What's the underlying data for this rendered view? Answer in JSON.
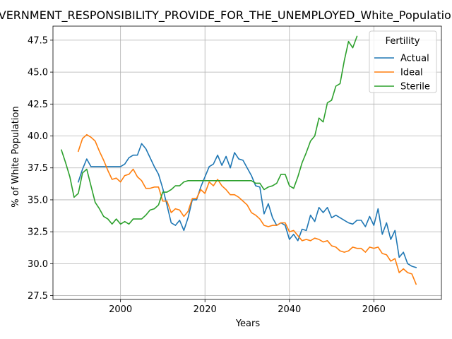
{
  "chart_data": {
    "type": "line",
    "title": "GOVERNMENT_RESPONSIBILITY_PROVIDE_FOR_THE_UNEMPLOYED_White_Population",
    "xlabel": "Years",
    "ylabel": "% of White Population",
    "xlim": [
      1984,
      2076
    ],
    "ylim": [
      27.2,
      48.6
    ],
    "xticks": [
      2000,
      2020,
      2040,
      2060
    ],
    "yticks": [
      27.5,
      30.0,
      32.5,
      35.0,
      37.5,
      40.0,
      42.5,
      45.0,
      47.5
    ],
    "grid": true,
    "legend": {
      "title": "Fertility",
      "position": "top-right"
    },
    "series": [
      {
        "name": "Actual",
        "color": "#1f77b4",
        "x": [
          1990,
          1991,
          1992,
          1993,
          1994,
          1995,
          1996,
          1997,
          1998,
          1999,
          2000,
          2001,
          2002,
          2003,
          2004,
          2005,
          2006,
          2007,
          2008,
          2009,
          2010,
          2011,
          2012,
          2013,
          2014,
          2015,
          2016,
          2017,
          2018,
          2019,
          2020,
          2021,
          2022,
          2023,
          2024,
          2025,
          2026,
          2027,
          2028,
          2029,
          2030,
          2031,
          2032,
          2033,
          2034,
          2035,
          2036,
          2037,
          2038,
          2039,
          2040,
          2041,
          2042,
          2043,
          2044,
          2045,
          2046,
          2047,
          2048,
          2049,
          2050,
          2051,
          2052,
          2053,
          2054,
          2055,
          2056,
          2057,
          2058,
          2059,
          2060,
          2061,
          2062,
          2063,
          2064,
          2065,
          2066,
          2067,
          2068,
          2069,
          2070
        ],
        "values": [
          36.4,
          37.4,
          38.2,
          37.6,
          37.6,
          37.6,
          37.6,
          37.6,
          37.6,
          37.6,
          37.6,
          37.8,
          38.3,
          38.5,
          38.5,
          39.4,
          39.0,
          38.3,
          37.6,
          37.0,
          35.9,
          34.6,
          33.2,
          33.0,
          33.4,
          32.6,
          33.6,
          35.0,
          35.0,
          36.0,
          36.8,
          37.6,
          37.8,
          38.5,
          37.7,
          38.4,
          37.5,
          38.7,
          38.2,
          38.1,
          37.5,
          36.9,
          36.1,
          36.0,
          33.9,
          34.7,
          33.6,
          33.0,
          33.2,
          33.0,
          31.9,
          32.3,
          31.8,
          32.7,
          32.6,
          33.8,
          33.3,
          34.4,
          34.0,
          34.4,
          33.6,
          33.8,
          33.6,
          33.4,
          33.2,
          33.1,
          33.4,
          33.4,
          32.9,
          33.7,
          33.0,
          34.3,
          32.3,
          33.2,
          31.9,
          32.6,
          30.5,
          30.9,
          30.0,
          29.8,
          29.7
        ]
      },
      {
        "name": "Ideal",
        "color": "#ff7f0e",
        "x": [
          1990,
          1991,
          1992,
          1993,
          1994,
          1995,
          1996,
          1997,
          1998,
          1999,
          2000,
          2001,
          2002,
          2003,
          2004,
          2005,
          2006,
          2007,
          2008,
          2009,
          2010,
          2011,
          2012,
          2013,
          2014,
          2015,
          2016,
          2017,
          2018,
          2019,
          2020,
          2021,
          2022,
          2023,
          2024,
          2025,
          2026,
          2027,
          2028,
          2029,
          2030,
          2031,
          2032,
          2033,
          2034,
          2035,
          2036,
          2037,
          2038,
          2039,
          2040,
          2041,
          2042,
          2043,
          2044,
          2045,
          2046,
          2047,
          2048,
          2049,
          2050,
          2051,
          2052,
          2053,
          2054,
          2055,
          2056,
          2057,
          2058,
          2059,
          2060,
          2061,
          2062,
          2063,
          2064,
          2065,
          2066,
          2067,
          2068,
          2069,
          2070
        ],
        "values": [
          38.8,
          39.8,
          40.1,
          39.9,
          39.6,
          38.8,
          38.1,
          37.3,
          36.6,
          36.7,
          36.4,
          36.9,
          37.0,
          37.4,
          36.8,
          36.5,
          35.9,
          35.9,
          36.0,
          36.0,
          34.9,
          34.9,
          34.0,
          34.3,
          34.2,
          33.7,
          34.1,
          35.1,
          35.1,
          35.8,
          35.5,
          36.4,
          36.1,
          36.6,
          36.1,
          35.8,
          35.4,
          35.4,
          35.2,
          34.9,
          34.6,
          34.0,
          33.8,
          33.5,
          33.0,
          32.9,
          33.0,
          33.0,
          33.2,
          33.2,
          32.5,
          32.6,
          32.2,
          31.8,
          31.9,
          31.8,
          32.0,
          31.9,
          31.7,
          31.8,
          31.4,
          31.3,
          31.0,
          30.9,
          31.0,
          31.3,
          31.2,
          31.2,
          30.9,
          31.3,
          31.2,
          31.3,
          30.8,
          30.7,
          30.2,
          30.4,
          29.3,
          29.6,
          29.3,
          29.2,
          28.4
        ]
      },
      {
        "name": "Sterile",
        "color": "#2ca02c",
        "x": [
          1986,
          1987,
          1988,
          1989,
          1990,
          1991,
          1992,
          1993,
          1994,
          1995,
          1996,
          1997,
          1998,
          1999,
          2000,
          2001,
          2002,
          2003,
          2004,
          2005,
          2006,
          2007,
          2008,
          2009,
          2010,
          2011,
          2012,
          2013,
          2014,
          2015,
          2016,
          2017,
          2018,
          2019,
          2020,
          2021,
          2022,
          2023,
          2024,
          2025,
          2026,
          2027,
          2028,
          2029,
          2030,
          2031,
          2032,
          2033,
          2034,
          2035,
          2036,
          2037,
          2038,
          2039,
          2040,
          2041,
          2042,
          2043,
          2044,
          2045,
          2046,
          2047,
          2048,
          2049,
          2050,
          2051,
          2052,
          2053,
          2054,
          2055,
          2056
        ],
        "values": [
          38.9,
          37.9,
          36.8,
          35.2,
          35.5,
          37.1,
          37.4,
          36.1,
          34.8,
          34.3,
          33.7,
          33.5,
          33.1,
          33.5,
          33.1,
          33.3,
          33.1,
          33.5,
          33.5,
          33.5,
          33.8,
          34.2,
          34.3,
          34.6,
          35.6,
          35.6,
          35.8,
          36.1,
          36.1,
          36.4,
          36.5,
          36.5,
          36.5,
          36.5,
          36.5,
          36.5,
          36.5,
          36.5,
          36.5,
          36.5,
          36.5,
          36.5,
          36.5,
          36.5,
          36.5,
          36.5,
          36.3,
          36.3,
          35.8,
          36.0,
          36.1,
          36.3,
          37.0,
          37.0,
          36.1,
          35.9,
          36.8,
          37.9,
          38.7,
          39.6,
          40.0,
          41.4,
          41.1,
          42.6,
          42.8,
          43.9,
          44.1,
          45.9,
          47.4,
          46.9,
          47.8
        ]
      }
    ]
  }
}
